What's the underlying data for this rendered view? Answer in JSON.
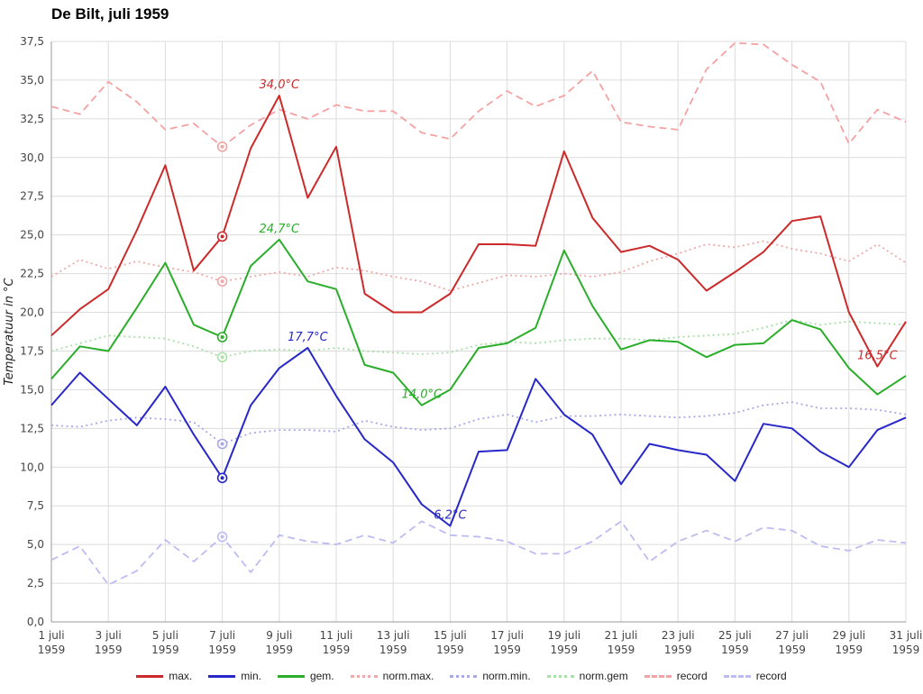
{
  "chart_data": {
    "type": "line",
    "title": "De Bilt, juli 1959",
    "ylabel": "Temperatuur in °C",
    "ylim": [
      0,
      37.5
    ],
    "grid": true,
    "legend_position": "bottom",
    "x": [
      1,
      2,
      3,
      4,
      5,
      6,
      7,
      8,
      9,
      10,
      11,
      12,
      13,
      14,
      15,
      16,
      17,
      18,
      19,
      20,
      21,
      22,
      23,
      24,
      25,
      26,
      27,
      28,
      29,
      30,
      31
    ],
    "xtick_days": [
      "1 juli",
      "3 juli",
      "5 juli",
      "7 juli",
      "9 juli",
      "11 juli",
      "13 juli",
      "15 juli",
      "17 juli",
      "19 juli",
      "21 juli",
      "23 juli",
      "25 juli",
      "27 juli",
      "29 juli",
      "31 juli"
    ],
    "xtick_year": "1959",
    "ytick_labels": [
      "0,0",
      "2,5",
      "5,0",
      "7,5",
      "10,0",
      "12,5",
      "15,0",
      "17,5",
      "20,0",
      "22,5",
      "25,0",
      "27,5",
      "30,0",
      "32,5",
      "35,0",
      "37,5"
    ],
    "highlight_day": 7,
    "series": [
      {
        "name": "max.",
        "key": "max",
        "style": "solid",
        "color": "#cc2a2a",
        "values": [
          18.5,
          20.2,
          21.5,
          25.3,
          29.5,
          22.7,
          24.9,
          30.6,
          34.0,
          27.4,
          30.7,
          21.2,
          20.0,
          20.0,
          21.2,
          24.4,
          24.4,
          24.3,
          30.4,
          26.1,
          23.9,
          24.3,
          23.4,
          21.4,
          22.6,
          23.9,
          25.9,
          26.2,
          20.0,
          16.5,
          19.4
        ]
      },
      {
        "name": "min.",
        "key": "min",
        "style": "solid",
        "color": "#2828c8",
        "values": [
          14.0,
          16.1,
          14.4,
          12.7,
          15.2,
          12.1,
          9.3,
          14.0,
          16.4,
          17.7,
          14.6,
          11.8,
          10.3,
          7.6,
          6.2,
          11.0,
          11.1,
          15.7,
          13.4,
          12.1,
          8.9,
          11.5,
          11.1,
          10.8,
          9.1,
          12.8,
          12.5,
          11.0,
          10.0,
          12.4,
          13.2
        ]
      },
      {
        "name": "gem.",
        "key": "gem",
        "style": "solid",
        "color": "#2aae2a",
        "values": [
          15.7,
          17.8,
          17.5,
          20.3,
          23.2,
          19.2,
          18.4,
          23.0,
          24.7,
          22.0,
          21.5,
          16.6,
          16.1,
          14.0,
          15.0,
          17.7,
          18.0,
          19.0,
          24.0,
          20.4,
          17.6,
          18.2,
          18.1,
          17.1,
          17.9,
          18.0,
          19.5,
          18.9,
          16.4,
          14.7,
          15.9
        ]
      },
      {
        "name": "norm.max.",
        "key": "norm-max",
        "style": "dotted",
        "color": "#f0a8a8",
        "values": [
          22.3,
          23.4,
          22.8,
          23.3,
          22.9,
          22.6,
          22.0,
          22.3,
          22.6,
          22.3,
          22.9,
          22.7,
          22.3,
          22.0,
          21.4,
          21.9,
          22.4,
          22.3,
          22.5,
          22.3,
          22.6,
          23.3,
          23.8,
          24.4,
          24.2,
          24.6,
          24.1,
          23.8,
          23.3,
          24.4,
          23.2
        ]
      },
      {
        "name": "norm.min.",
        "key": "norm-min",
        "style": "dotted",
        "color": "#a8a8ea",
        "values": [
          12.7,
          12.6,
          13.0,
          13.2,
          13.1,
          12.9,
          11.5,
          12.2,
          12.4,
          12.4,
          12.3,
          13.0,
          12.6,
          12.4,
          12.5,
          13.1,
          13.4,
          12.9,
          13.3,
          13.3,
          13.4,
          13.3,
          13.2,
          13.3,
          13.5,
          14.0,
          14.2,
          13.8,
          13.8,
          13.7,
          13.4
        ]
      },
      {
        "name": "norm.gem",
        "key": "norm-gem",
        "style": "dotted",
        "color": "#a8e0a8",
        "values": [
          17.5,
          18.0,
          18.5,
          18.4,
          18.3,
          17.8,
          17.1,
          17.5,
          17.6,
          17.5,
          17.7,
          17.5,
          17.4,
          17.3,
          17.4,
          17.9,
          18.1,
          18.0,
          18.2,
          18.3,
          18.3,
          18.2,
          18.4,
          18.5,
          18.6,
          19.0,
          19.5,
          19.2,
          19.4,
          19.3,
          19.2
        ]
      },
      {
        "name": "record",
        "key": "record-high",
        "style": "dashed",
        "color": "#f4a2a2",
        "values": [
          33.3,
          32.8,
          34.9,
          33.6,
          31.8,
          32.2,
          30.7,
          32.1,
          33.1,
          32.5,
          33.4,
          33.0,
          33.0,
          31.6,
          31.2,
          33.0,
          34.3,
          33.3,
          34.0,
          35.6,
          32.3,
          32.0,
          31.8,
          35.7,
          37.4,
          37.3,
          36.0,
          34.9,
          30.9,
          33.1,
          32.3
        ]
      },
      {
        "name": "record",
        "key": "record-low",
        "style": "dashed",
        "color": "#bcbcf2",
        "values": [
          4.0,
          4.9,
          2.4,
          3.3,
          5.3,
          3.9,
          5.5,
          3.2,
          5.6,
          5.2,
          5.0,
          5.6,
          5.1,
          6.5,
          5.6,
          5.5,
          5.2,
          4.4,
          4.4,
          5.2,
          6.5,
          3.9,
          5.2,
          5.9,
          5.2,
          6.1,
          5.9,
          4.9,
          4.6,
          5.3,
          5.1
        ]
      }
    ],
    "annotations": [
      {
        "text": "34,0°C",
        "day": 9,
        "value": 34.0,
        "color": "#cc2a2a"
      },
      {
        "text": "24,7°C",
        "day": 9,
        "value": 24.7,
        "color": "#2aae2a"
      },
      {
        "text": "17,7°C",
        "day": 10,
        "value": 17.7,
        "color": "#2828c8"
      },
      {
        "text": "14,0°C",
        "day": 14,
        "value": 14.0,
        "color": "#2aae2a"
      },
      {
        "text": "6,2°C",
        "day": 15,
        "value": 6.2,
        "color": "#2828c8"
      },
      {
        "text": "16,5°C",
        "day": 30,
        "value": 16.5,
        "color": "#cc2a2a"
      }
    ]
  }
}
